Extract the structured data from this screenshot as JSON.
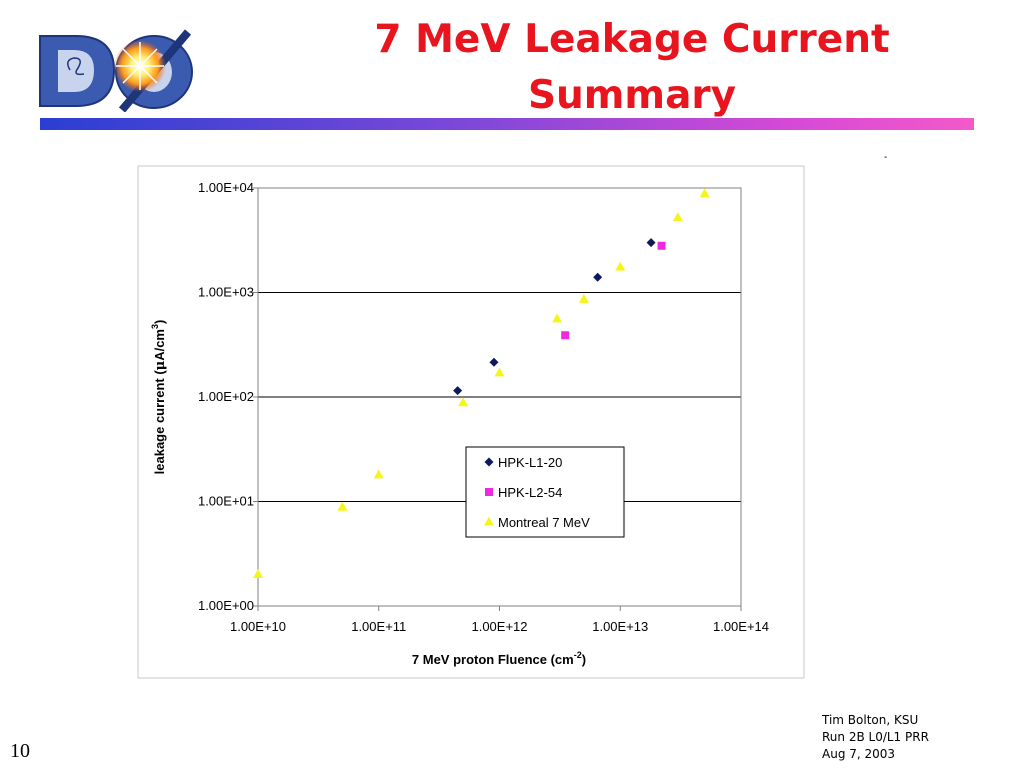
{
  "slide": {
    "title_line1": "7 MeV Leakage Current",
    "title_line2": "Summary",
    "logo_text": "DØ",
    "number": "10",
    "footer": [
      "Tim Bolton, KSU",
      "Run 2B L0/L1 PRR",
      "Aug 7, 2003"
    ],
    "stray_mark": "-"
  },
  "colors": {
    "title": "#e8141e",
    "HPK-L1-20": "#0b1a5c",
    "HPK-L2-54": "#ee2ae0",
    "Montreal 7 MeV": "#f5f51c"
  },
  "chart_data": {
    "type": "scatter",
    "title": "",
    "xlabel": "7 MeV proton Fluence (cm",
    "xlabel_sup": "-2",
    "xlabel_end": ")",
    "ylabel": "leakage current (",
    "ylabel_mu": "μ",
    "ylabel_mid": "A/cm",
    "ylabel_sup": "3",
    "ylabel_end": ")",
    "x_scale": "log",
    "y_scale": "log",
    "xlim": [
      10000000000.0,
      100000000000000.0
    ],
    "ylim": [
      1,
      10000
    ],
    "x_ticks": [
      10000000000.0,
      100000000000.0,
      1000000000000.0,
      10000000000000.0,
      100000000000000.0
    ],
    "x_tick_labels": [
      "1.00E+10",
      "1.00E+11",
      "1.00E+12",
      "1.00E+13",
      "1.00E+14"
    ],
    "y_ticks": [
      1,
      10,
      100,
      1000,
      10000
    ],
    "y_tick_labels": [
      "1.00E+00",
      "1.00E+01",
      "1.00E+02",
      "1.00E+03",
      "1.00E+04"
    ],
    "grid": "horizontal major lines",
    "legend_position": "center-right inside plot",
    "series": [
      {
        "name": "HPK-L1-20",
        "marker": "diamond",
        "points": [
          [
            450000000000.0,
            115
          ],
          [
            900000000000.0,
            215
          ],
          [
            6500000000000.0,
            1400
          ],
          [
            18000000000000.0,
            3000
          ]
        ]
      },
      {
        "name": "HPK-L2-54",
        "marker": "square",
        "points": [
          [
            3500000000000.0,
            390
          ],
          [
            22000000000000.0,
            2800
          ]
        ]
      },
      {
        "name": "Montreal 7 MeV",
        "marker": "triangle",
        "points": [
          [
            10000000000.0,
            2
          ],
          [
            50000000000.0,
            8.8
          ],
          [
            100000000000.0,
            18
          ],
          [
            500000000000.0,
            88
          ],
          [
            1000000000000.0,
            170
          ],
          [
            3000000000000.0,
            560
          ],
          [
            5000000000000.0,
            860
          ],
          [
            10000000000000.0,
            1750
          ],
          [
            30000000000000.0,
            5200
          ],
          [
            50000000000000.0,
            8800
          ]
        ]
      }
    ]
  }
}
